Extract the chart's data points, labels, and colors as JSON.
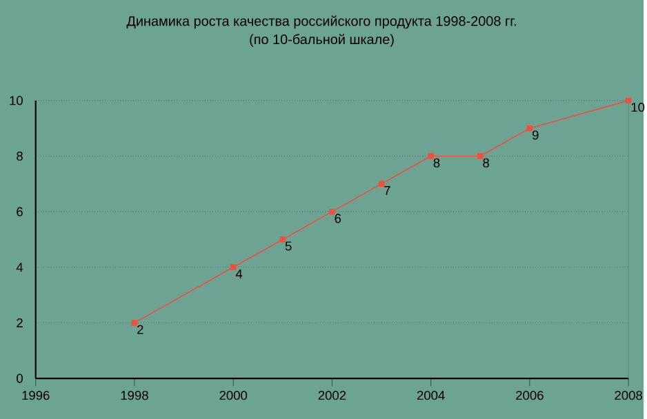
{
  "chart_data": {
    "type": "line",
    "title": "Динамика роста качества российского продукта 1998-2008 гг.",
    "subtitle": "(по 10-бальной шкале)",
    "x": [
      1998,
      2000,
      2001,
      2002,
      2003,
      2004,
      2005,
      2006,
      2008
    ],
    "values": [
      2,
      4,
      5,
      6,
      7,
      8,
      8,
      9,
      10
    ],
    "color": "#f0503c",
    "xlim": [
      1996,
      2008
    ],
    "xticks": [
      1996,
      1998,
      2000,
      2002,
      2004,
      2006,
      2008
    ],
    "ylim": [
      0,
      10
    ],
    "yticks": [
      0,
      2,
      4,
      6,
      8,
      10
    ],
    "grid": "y",
    "marker": "square",
    "line_style": "solid",
    "data_labels": true
  }
}
